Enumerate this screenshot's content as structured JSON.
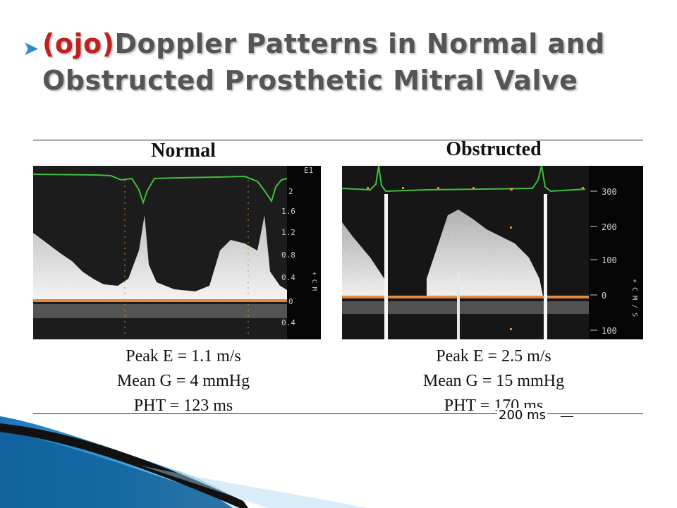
{
  "slide": {
    "title_prefix": "(ojo)",
    "title_main": "Doppler Patterns in Normal and Obstructed Prosthetic Mitral Valve"
  },
  "columns": [
    {
      "label": "Normal",
      "scale_top": "E1",
      "scale_ticks": [
        "2",
        "1.6",
        "1.2",
        "0.8",
        "0.4",
        "0",
        "0.4"
      ],
      "side_text": "+ C M",
      "stats": [
        "Peak E = 1.1 m/s",
        "Mean G = 4 mmHg",
        "PHT = 123 ms"
      ]
    },
    {
      "label": "Obstructed",
      "scale_ticks": [
        "300",
        "200",
        "100",
        "0",
        "100"
      ],
      "side_text": "+ C M / S",
      "stats": [
        "Peak E = 2.5 m/s",
        "Mean G = 15 mmHg",
        "PHT = 170 ms"
      ]
    }
  ],
  "annotation": {
    "text": "200 ms"
  },
  "colors": {
    "title_prefix": "#c0211e",
    "title": "#555555",
    "ecg_trace": "#3fbf3f",
    "baseline": "#e8883a",
    "deco_blue": "#1f7fc0"
  }
}
